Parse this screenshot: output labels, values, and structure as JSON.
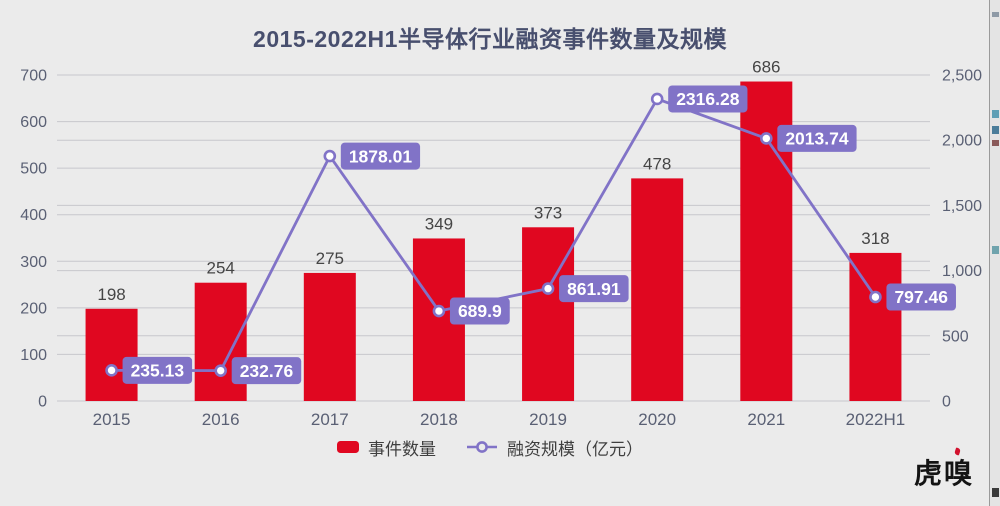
{
  "title": "2015-2022H1半导体行业融资事件数量及规模",
  "colors": {
    "background": "#ebebeb",
    "bar": "#e00720",
    "line": "#8173c7",
    "value_label_background": "#8173c7",
    "value_label_text": "#ffffff",
    "grid": "#c7c7cc",
    "axis_text": "#5a6074",
    "title_text": "#484f6e",
    "bar_label_text": "#454545"
  },
  "chart_data": {
    "type": "bar",
    "subtype": "combo-bar-line-dual-axis",
    "title": "2015-2022H1半导体行业融资事件数量及规模",
    "categories": [
      "2015",
      "2016",
      "2017",
      "2018",
      "2019",
      "2020",
      "2021",
      "2022H1"
    ],
    "series": [
      {
        "name": "事件数量",
        "type": "bar",
        "axis": "left",
        "values": [
          198,
          254,
          275,
          349,
          373,
          478,
          686,
          318
        ],
        "value_labels": [
          "198",
          "254",
          "275",
          "349",
          "373",
          "478",
          "686",
          "318"
        ]
      },
      {
        "name": "融资规模（亿元）",
        "type": "line",
        "axis": "right",
        "values": [
          235.13,
          232.76,
          1878.01,
          689.9,
          861.91,
          2316.28,
          2013.74,
          797.46
        ],
        "value_labels": [
          "235.13",
          "232.76",
          "1878.01",
          "689.9",
          "861.91",
          "2316.28",
          "2013.74",
          "797.46"
        ]
      }
    ],
    "left_axis": {
      "min": 0,
      "max": 700,
      "ticks": [
        0,
        100,
        200,
        300,
        400,
        500,
        600,
        700
      ],
      "tick_labels": [
        "0",
        "100",
        "200",
        "300",
        "400",
        "500",
        "600",
        "700"
      ]
    },
    "right_axis": {
      "min": 0,
      "max": 2500,
      "ticks": [
        0,
        500,
        1000,
        1500,
        2000,
        2500
      ],
      "tick_labels": [
        "0",
        "500",
        "1,000",
        "1,500",
        "2,000",
        "2,500"
      ]
    },
    "grid": true,
    "legend_position": "bottom-center"
  },
  "watermark": {
    "text": "虎嗅"
  }
}
